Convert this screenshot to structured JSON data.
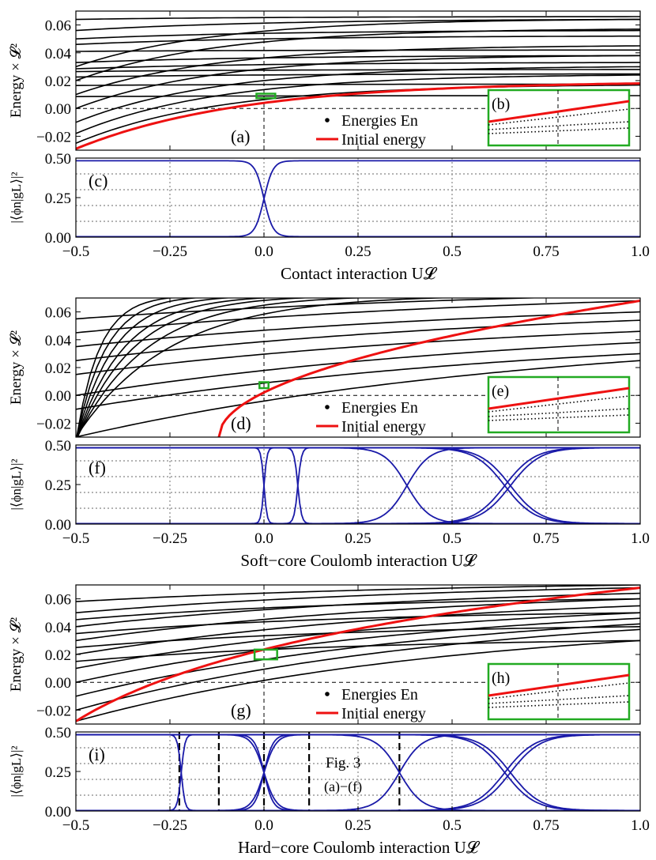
{
  "colors": {
    "energy_line": "#000000",
    "initial_energy": "#ee1111",
    "overlap": "#1a1aa8",
    "inset_frame": "#22aa22",
    "grid": "#9a9a9a"
  },
  "shared_axes": {
    "x_ticks": [
      "−0.5",
      "−0.25",
      "0.0",
      "0.25",
      "0.5",
      "0.75",
      "1.0"
    ],
    "x_tick_values": [
      -0.5,
      -0.25,
      0.0,
      0.25,
      0.5,
      0.75,
      1.0
    ],
    "energy_ylabel": "Energy × 𝓛²",
    "energy_yticks": [
      "0.06",
      "0.04",
      "0.02",
      "0.00",
      "−0.02"
    ],
    "energy_ytick_values": [
      0.06,
      0.04,
      0.02,
      0.0,
      -0.02
    ],
    "overlap_ylabel": "|⟨ϕn|gL⟩|²",
    "overlap_yticks": [
      "0.50",
      "0.25",
      "0.00"
    ],
    "overlap_ytick_values": [
      0.5,
      0.25,
      0.0
    ],
    "legend": {
      "dots": "Energies En",
      "line": "Initial energy"
    }
  },
  "chart_data": [
    {
      "type": "line",
      "panel_labels": {
        "energy": "(a)",
        "inset": "(b)",
        "overlap": "(c)"
      },
      "xlabel": "Contact interaction U𝓛",
      "xlim": [
        -0.5,
        1.0
      ],
      "ylim_energy": [
        -0.03,
        0.07
      ],
      "ylim_overlap": [
        0.0,
        0.5
      ],
      "inset_box": {
        "u": [
          -0.02,
          0.03
        ],
        "e": [
          0.0074,
          0.0106
        ]
      },
      "initial_energy": {
        "e_start": -0.029,
        "e_end": 0.018,
        "shape": "exp",
        "k": 3.4
      },
      "energy_levels": [
        {
          "e0": 0.0085,
          "e1": 0.0092,
          "k": 3
        },
        {
          "e0": 0.0165,
          "e1": 0.0175,
          "k": 3
        },
        {
          "e0": 0.0226,
          "e1": 0.0248,
          "k": 3
        },
        {
          "e0": 0.0265,
          "e1": 0.028,
          "k": 3
        },
        {
          "e0": 0.0285,
          "e1": 0.033,
          "k": 3
        },
        {
          "e0": 0.033,
          "e1": 0.038,
          "k": 3
        },
        {
          "e0": 0.041,
          "e1": 0.042,
          "k": 3
        },
        {
          "e0": 0.046,
          "e1": 0.052,
          "k": 3
        },
        {
          "e0": 0.05,
          "e1": 0.056,
          "k": 3
        },
        {
          "e0": 0.056,
          "e1": 0.064,
          "k": 3
        },
        {
          "e0": 0.064,
          "e1": 0.066,
          "k": 3
        },
        {
          "e0": -0.025,
          "e1": 0.0168,
          "k": 4
        },
        {
          "e0": -0.018,
          "e1": 0.024,
          "k": 4
        },
        {
          "e0": -0.01,
          "e1": 0.03,
          "k": 4
        },
        {
          "e0": 0.0,
          "e1": 0.038,
          "k": 4
        },
        {
          "e0": 0.01,
          "e1": 0.045,
          "k": 4
        },
        {
          "e0": 0.02,
          "e1": 0.057,
          "k": 4
        },
        {
          "e0": 0.03,
          "e1": 0.064,
          "k": 4
        }
      ],
      "overlap_curves": [
        {
          "x0": 0.0,
          "w": 0.012,
          "dir": 1
        },
        {
          "x0": 0.0,
          "w": 0.012,
          "dir": -1
        }
      ],
      "vlines": []
    },
    {
      "type": "line",
      "panel_labels": {
        "energy": "(d)",
        "inset": "(e)",
        "overlap": "(f)"
      },
      "xlabel": "Soft−core Coulomb interaction U𝓛",
      "xlim": [
        -0.5,
        1.0
      ],
      "ylim_energy": [
        -0.03,
        0.07
      ],
      "ylim_overlap": [
        0.0,
        0.5
      ],
      "inset_box": {
        "u": [
          -0.012,
          0.012
        ],
        "e": [
          0.0052,
          0.0095
        ]
      },
      "initial_energy": {
        "e_start": -0.03,
        "e_end": 0.068,
        "shape": "sqrt",
        "u_start": -0.12,
        "k": 0
      },
      "energy_levels": [
        {
          "e0": -0.03,
          "e1": 0.025,
          "k": 1.2
        },
        {
          "e0": -0.01,
          "e1": 0.03,
          "k": 1.2
        },
        {
          "e0": 0.0,
          "e1": 0.038,
          "k": 1.2
        },
        {
          "e0": 0.015,
          "e1": 0.046,
          "k": 1.2
        },
        {
          "e0": 0.025,
          "e1": 0.054,
          "k": 1.2
        },
        {
          "e0": 0.035,
          "e1": 0.06,
          "k": 1.2
        },
        {
          "e0": 0.045,
          "e1": 0.068,
          "k": 1.2
        },
        {
          "e0": 0.055,
          "e1": 0.072,
          "k": 1.2
        },
        {
          "e0": -0.03,
          "e1": 0.072,
          "k": 6
        },
        {
          "e0": -0.032,
          "e1": 0.072,
          "k": 8
        },
        {
          "e0": -0.033,
          "e1": 0.072,
          "k": 10
        },
        {
          "e0": -0.033,
          "e1": 0.072,
          "k": 12
        },
        {
          "e0": -0.033,
          "e1": 0.072,
          "k": 15
        },
        {
          "e0": -0.033,
          "e1": 0.072,
          "k": 19
        },
        {
          "e0": -0.033,
          "e1": 0.072,
          "k": 24
        }
      ],
      "overlap_curves": [
        {
          "x0": 0.0,
          "w": 0.004,
          "dir": 1
        },
        {
          "x0": 0.0,
          "w": 0.004,
          "dir": -1
        },
        {
          "x0": 0.09,
          "w": 0.005,
          "dir": 1
        },
        {
          "x0": 0.09,
          "w": 0.005,
          "dir": -1
        },
        {
          "x0": 0.38,
          "w": 0.03,
          "dir": 1
        },
        {
          "x0": 0.38,
          "w": 0.03,
          "dir": -1
        },
        {
          "x0": 0.64,
          "w": 0.04,
          "dir": 1
        },
        {
          "x0": 0.64,
          "w": 0.04,
          "dir": -1
        },
        {
          "x0": 0.655,
          "w": 0.04,
          "dir": 1
        },
        {
          "x0": 0.655,
          "w": 0.04,
          "dir": -1
        }
      ],
      "vlines": []
    },
    {
      "type": "line",
      "panel_labels": {
        "energy": "(g)",
        "inset": "(h)",
        "overlap": "(i)"
      },
      "xlabel": "Hard−core Coulomb interaction U𝓛",
      "xlim": [
        -0.5,
        1.0
      ],
      "ylim_energy": [
        -0.03,
        0.07
      ],
      "ylim_overlap": [
        0.0,
        0.5
      ],
      "inset_box": {
        "u": [
          -0.025,
          0.035
        ],
        "e": [
          0.0165,
          0.0235
        ]
      },
      "initial_energy": {
        "e_start": -0.028,
        "e_end": 0.068,
        "shape": "log",
        "k": 4.5
      },
      "energy_levels": [
        {
          "e0": -0.028,
          "e1": 0.03,
          "k": 1.5
        },
        {
          "e0": -0.02,
          "e1": 0.038,
          "k": 1.5
        },
        {
          "e0": -0.01,
          "e1": 0.042,
          "k": 1.5
        },
        {
          "e0": 0.0,
          "e1": 0.046,
          "k": 1.5
        },
        {
          "e0": 0.01,
          "e1": 0.05,
          "k": 1.5
        },
        {
          "e0": 0.02,
          "e1": 0.055,
          "k": 1.5
        },
        {
          "e0": 0.03,
          "e1": 0.06,
          "k": 1.5
        },
        {
          "e0": 0.04,
          "e1": 0.064,
          "k": 1.5
        },
        {
          "e0": 0.05,
          "e1": 0.068,
          "k": 1.5
        },
        {
          "e0": 0.058,
          "e1": 0.07,
          "k": 1.5
        },
        {
          "e0": 0.015,
          "e1": 0.03,
          "k": 2
        },
        {
          "e0": 0.025,
          "e1": 0.04,
          "k": 2
        },
        {
          "e0": 0.035,
          "e1": 0.05,
          "k": 2
        },
        {
          "e0": 0.045,
          "e1": 0.06,
          "k": 2
        }
      ],
      "overlap_curves": [
        {
          "x0": -0.22,
          "w": 0.005,
          "dir": 1
        },
        {
          "x0": -0.22,
          "w": 0.005,
          "dir": -1
        },
        {
          "x0": 0.0,
          "w": 0.012,
          "dir": 1
        },
        {
          "x0": 0.0,
          "w": 0.012,
          "dir": -1
        },
        {
          "x0": 0.0,
          "w": 0.016,
          "dir": 1
        },
        {
          "x0": 0.0,
          "w": 0.016,
          "dir": -1
        },
        {
          "x0": 0.36,
          "w": 0.03,
          "dir": 1
        },
        {
          "x0": 0.36,
          "w": 0.03,
          "dir": -1
        },
        {
          "x0": 0.64,
          "w": 0.04,
          "dir": 1
        },
        {
          "x0": 0.64,
          "w": 0.04,
          "dir": -1
        },
        {
          "x0": 0.655,
          "w": 0.04,
          "dir": 1
        },
        {
          "x0": 0.655,
          "w": 0.04,
          "dir": -1
        }
      ],
      "vlines": [
        -0.225,
        -0.12,
        0.0,
        0.12,
        0.36
      ],
      "annotation": {
        "line1": "Fig. 3",
        "line2": "(a)−(f)"
      }
    }
  ]
}
